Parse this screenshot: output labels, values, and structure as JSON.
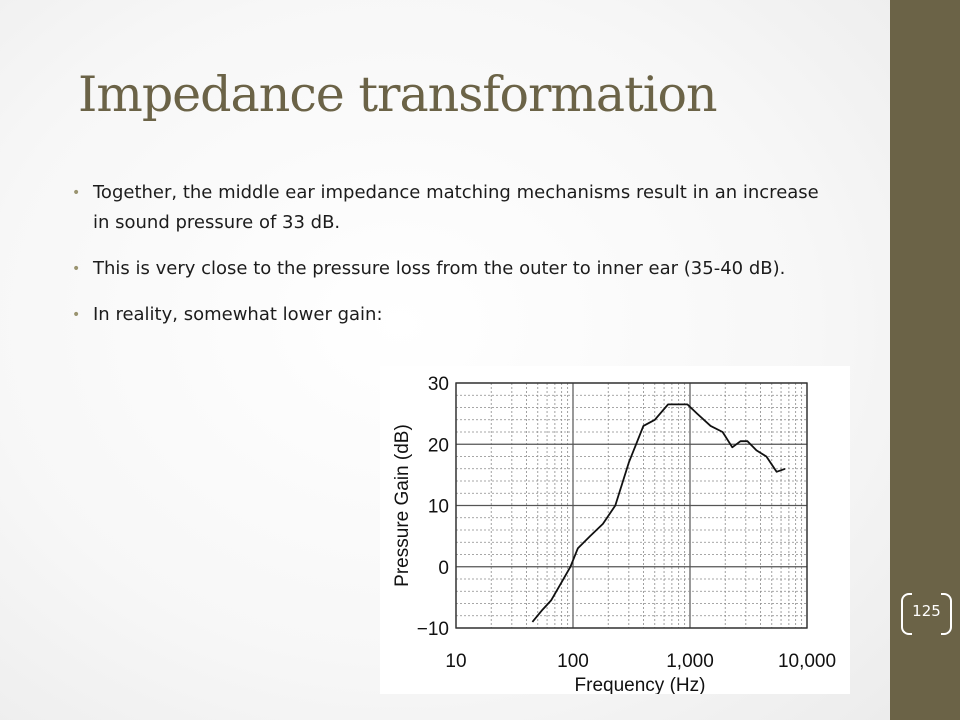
{
  "slide": {
    "title": "Impedance transformation",
    "bullets": [
      "Together, the middle ear impedance matching mechanisms result in an increase in sound pressure of 33 dB.",
      "This is very close to the pressure loss from the outer to inner ear (35-40 dB).",
      "In reality, somewhat lower gain:"
    ],
    "bullet_marker": "•",
    "page_number": "125"
  },
  "colors": {
    "accent": "#6b6347",
    "title": "#6b6347",
    "text": "#1c1c1c"
  },
  "chart_data": {
    "type": "line",
    "xlabel": "Frequency (Hz)",
    "ylabel": "Pressure Gain (dB)",
    "xscale": "log",
    "xlim": [
      10,
      10000
    ],
    "ylim": [
      -10,
      30
    ],
    "xticks": [
      "10",
      "100",
      "1,000",
      "10,000"
    ],
    "yticks": [
      "−10",
      "0",
      "10",
      "20",
      "30"
    ],
    "grid": true,
    "series": [
      {
        "x": [
          45,
          55,
          65,
          80,
          95,
          110,
          140,
          180,
          230,
          300,
          400,
          500,
          650,
          750,
          950,
          1150,
          1500,
          1900,
          2300,
          2700,
          3100,
          3700,
          4500,
          5500,
          6500
        ],
        "y": [
          -9,
          -7,
          -5.5,
          -2.5,
          0,
          3,
          5,
          7,
          10,
          17,
          23,
          24,
          26.5,
          26.5,
          26.5,
          25,
          23,
          22,
          19.5,
          20.5,
          20.5,
          19,
          18,
          15.5,
          16
        ]
      }
    ]
  }
}
